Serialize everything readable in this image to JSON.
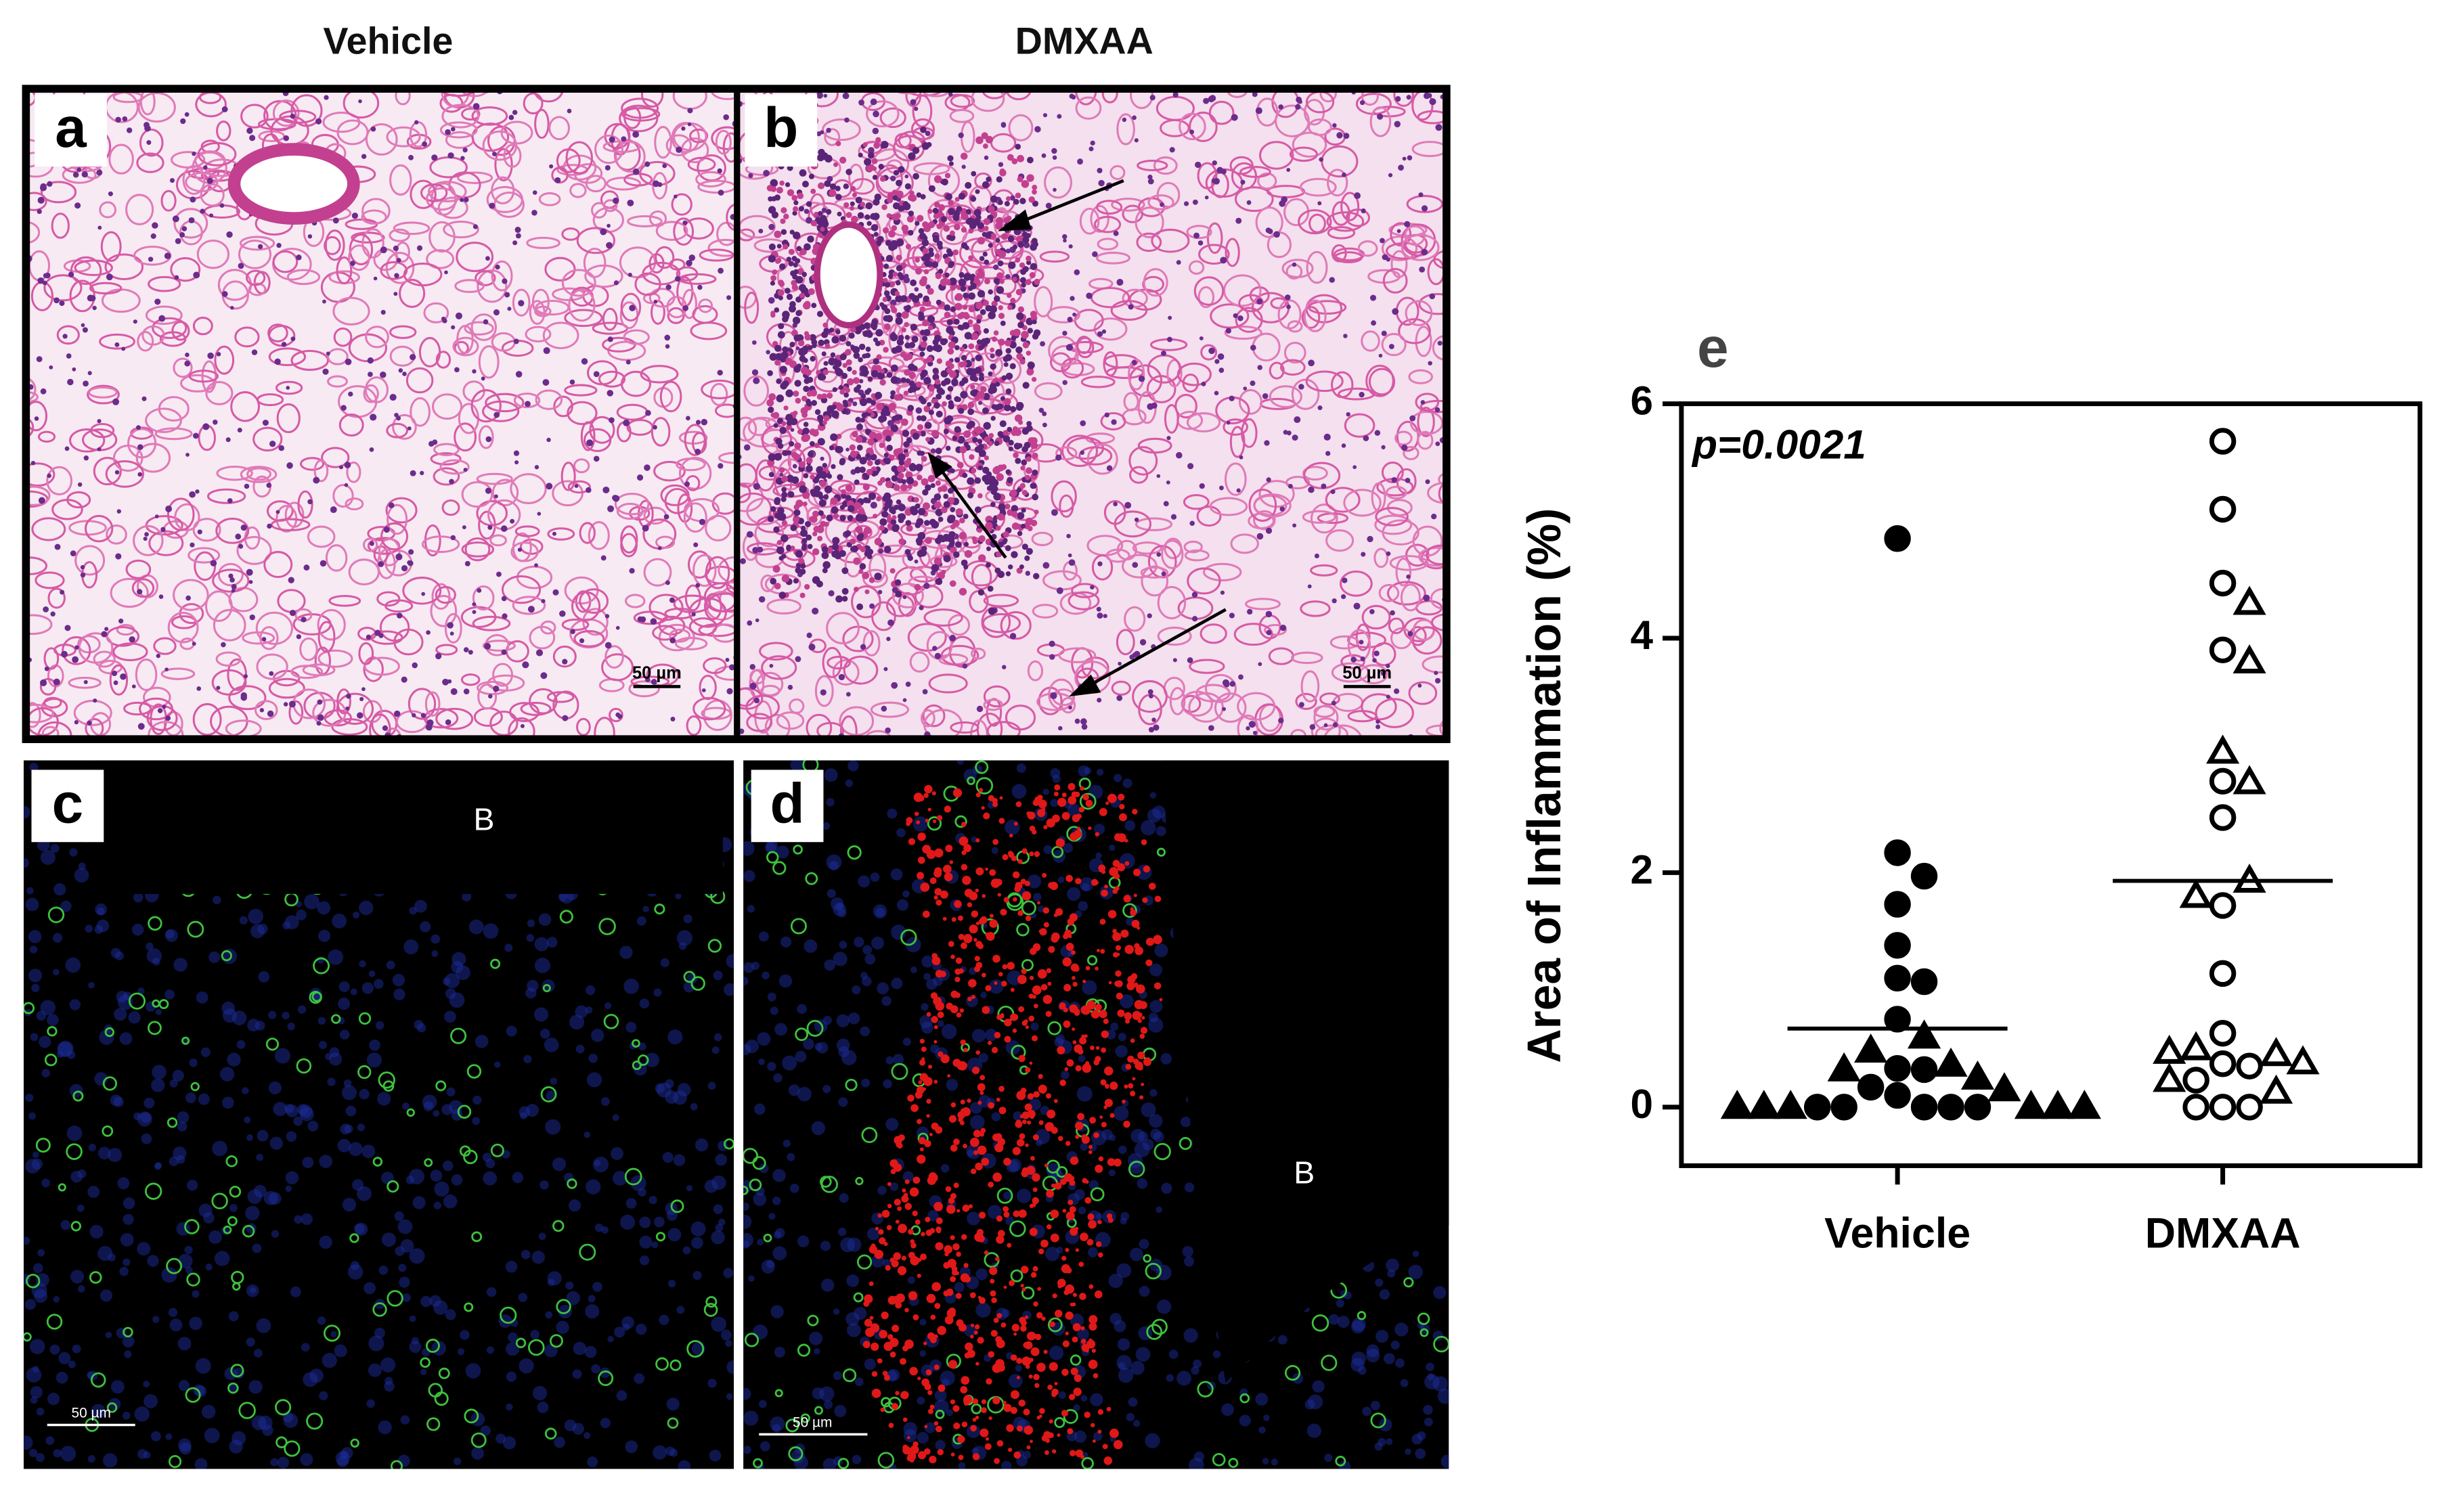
{
  "figure": {
    "columns": [
      "Vehicle",
      "DMXAA"
    ],
    "panels": [
      {
        "letter": "a",
        "scale_bar": "50 µm"
      },
      {
        "letter": "b",
        "scale_bar": "50 µm"
      },
      {
        "letter": "c",
        "scale_bar": "50 µm",
        "region_label": "B"
      },
      {
        "letter": "d",
        "scale_bar": "50 µm",
        "region_label": "B"
      }
    ]
  },
  "chart_data": {
    "type": "scatter",
    "panel_letter": "e",
    "ylabel": "Area of Inflammation (%)",
    "annotation": "p=0.0021",
    "categories": [
      "Vehicle",
      "DMXAA"
    ],
    "ylim": [
      -0.5,
      6
    ],
    "yticks": [
      0,
      2,
      4,
      6
    ],
    "medians": [
      0.67,
      1.93
    ],
    "series": [
      {
        "category": "Vehicle",
        "marker": "circle",
        "filled": true,
        "color": "#000000",
        "values": [
          4.85,
          2.17,
          1.97,
          1.73,
          1.38,
          1.1,
          1.07,
          0.75,
          0.33,
          0.32,
          0.17,
          0.1,
          0,
          0,
          0,
          0,
          0
        ]
      },
      {
        "category": "Vehicle",
        "marker": "triangle",
        "filled": true,
        "color": "#000000",
        "values": [
          0.6,
          0.48,
          0.36,
          0.32,
          0.25,
          0.15,
          0,
          0,
          0,
          0,
          0,
          0
        ]
      },
      {
        "category": "DMXAA",
        "marker": "circle",
        "filled": false,
        "color": "#000000",
        "values": [
          5.68,
          5.1,
          4.47,
          3.9,
          2.78,
          2.47,
          1.72,
          1.14,
          0.63,
          0.37,
          0.35,
          0.23,
          0,
          0,
          0
        ]
      },
      {
        "category": "DMXAA",
        "marker": "triangle",
        "filled": false,
        "color": "#000000",
        "values": [
          4.3,
          3.8,
          3.03,
          2.77,
          1.93,
          1.8,
          0.5,
          0.45,
          0.47,
          0.38,
          0.23,
          0.13
        ]
      }
    ]
  }
}
